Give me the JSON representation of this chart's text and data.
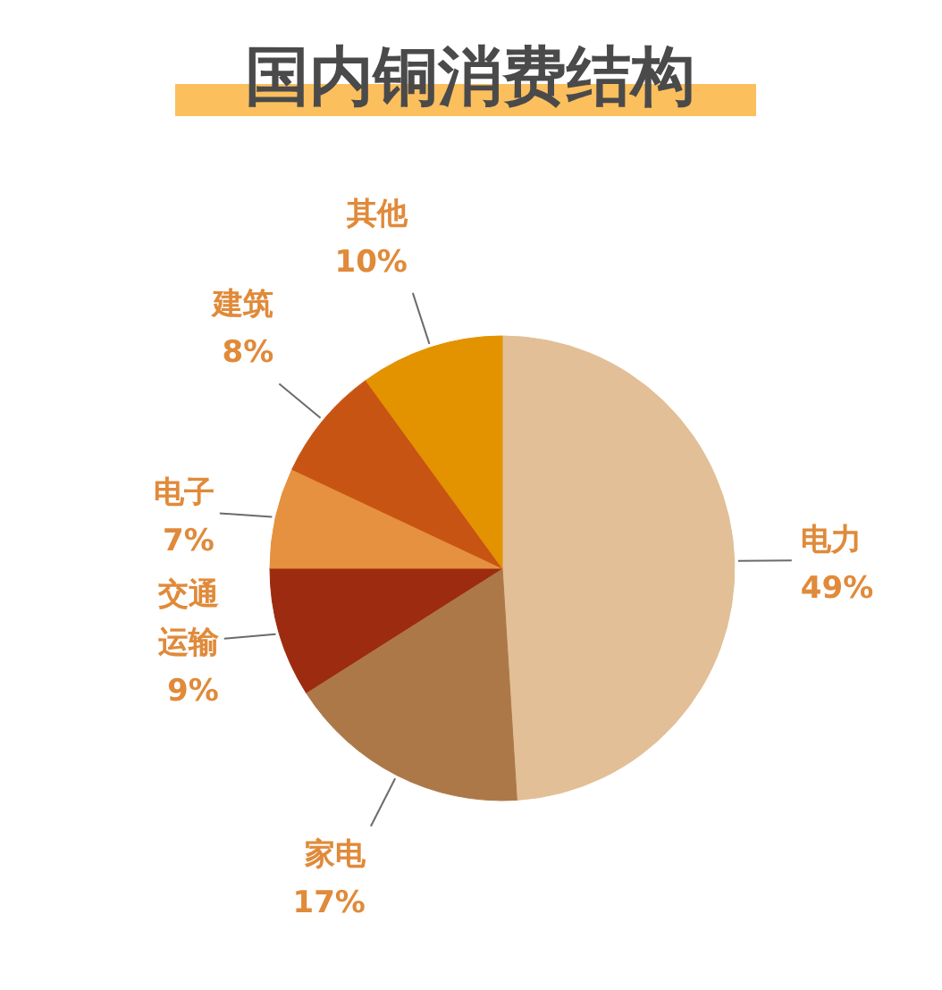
{
  "chart_data": {
    "type": "pie",
    "title": "国内铜消费结构",
    "categories": [
      "电力",
      "家电",
      "交通运输",
      "电子",
      "建筑",
      "其他"
    ],
    "values": [
      49,
      17,
      9,
      7,
      8,
      10
    ],
    "colors": [
      "#e2bf96",
      "#ad7848",
      "#9c2b0f",
      "#e5913f",
      "#c85414",
      "#e39200"
    ],
    "value_labels": [
      "49%",
      "17%",
      "9%",
      "7%",
      "8%",
      "10%"
    ]
  }
}
